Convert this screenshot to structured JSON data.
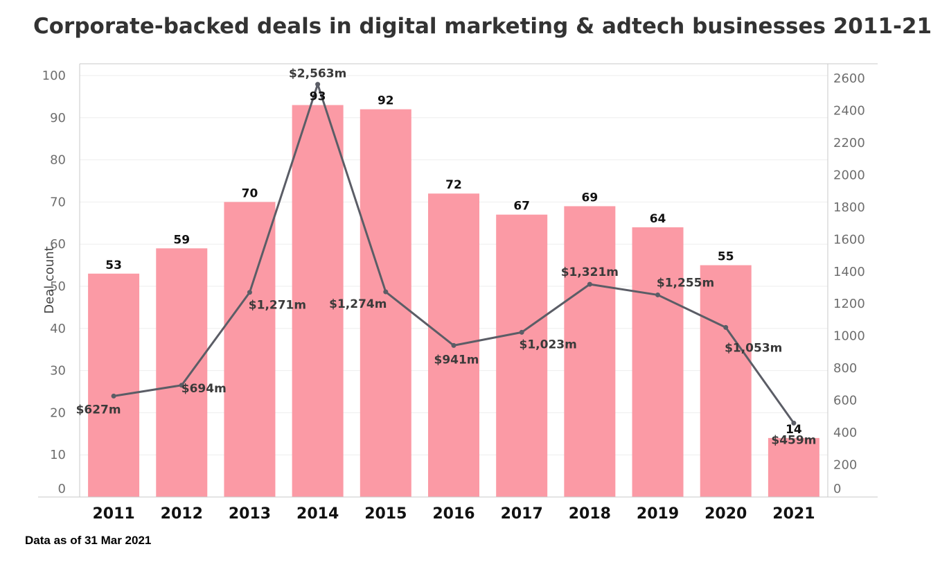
{
  "title": "Corporate-backed deals in digital marketing & adtech businesses 2011-21",
  "footnote": "Data as of 31 Mar 2021",
  "colors": {
    "bar": "#fb9aa5",
    "line": "#5b5d66",
    "gridline": "#eeeeee",
    "axis": "#c9c9c9"
  },
  "chart_data": {
    "type": "bar",
    "title": "Corporate-backed deals in digital marketing & adtech businesses 2011-21",
    "xlabel": "",
    "ylabel": "Deal count",
    "ylim": [
      0,
      100
    ],
    "y_ticks": [
      0,
      10,
      20,
      30,
      40,
      50,
      60,
      70,
      80,
      90,
      100
    ],
    "y2lim": [
      0,
      2600
    ],
    "y2_ticks": [
      0,
      200,
      400,
      600,
      800,
      1000,
      1200,
      1400,
      1600,
      1800,
      2000,
      2200,
      2400,
      2600
    ],
    "grid": true,
    "legend": "none",
    "categories": [
      "2011",
      "2012",
      "2013",
      "2014",
      "2015",
      "2016",
      "2017",
      "2018",
      "2019",
      "2020",
      "2021"
    ],
    "series": [
      {
        "type": "bar",
        "axis": "left",
        "values": [
          53,
          59,
          70,
          93,
          92,
          72,
          67,
          69,
          64,
          55,
          14
        ],
        "labels": [
          "53",
          "59",
          "70",
          "93",
          "92",
          "72",
          "67",
          "69",
          "64",
          "55",
          "14"
        ]
      },
      {
        "type": "line",
        "axis": "right",
        "values": [
          627,
          694,
          1271,
          2563,
          1274,
          941,
          1023,
          1321,
          1255,
          1053,
          459
        ],
        "labels": [
          "$627m",
          "$694m",
          "$1,271m",
          "$2,563m",
          "$1,274m",
          "$941m",
          "$1,023m",
          "$1,321m",
          "$1,255m",
          "$1,053m",
          "$459m"
        ]
      }
    ]
  }
}
